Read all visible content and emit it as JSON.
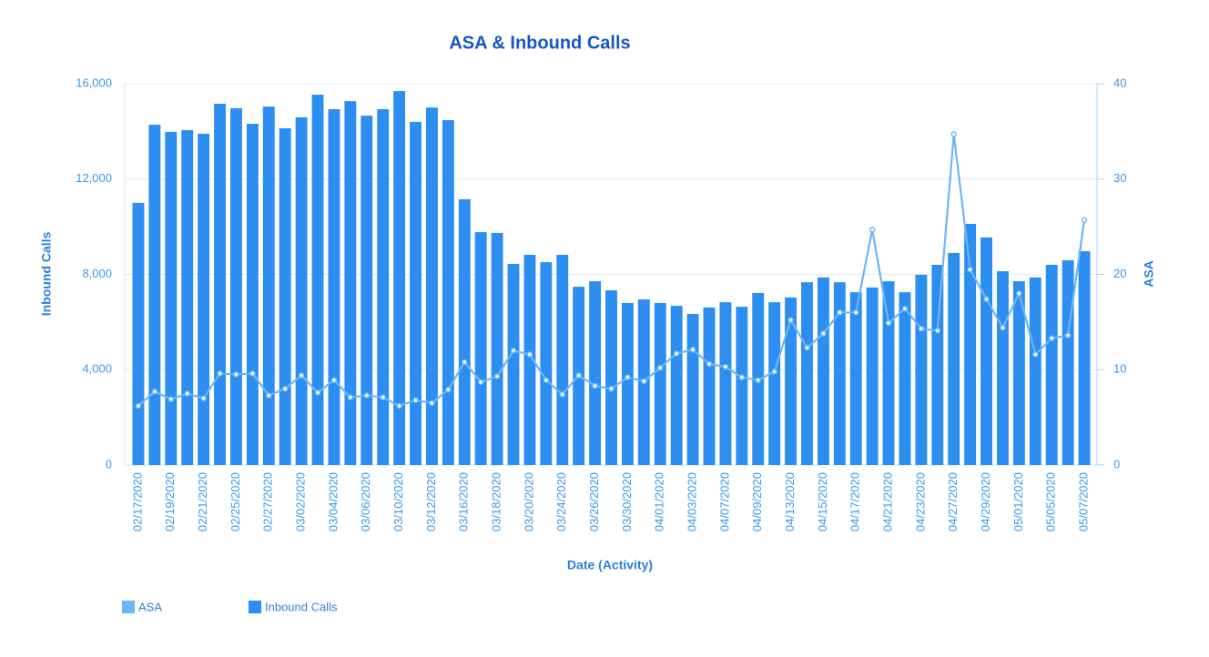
{
  "chart_data": {
    "type": "bar-line",
    "title": "ASA & Inbound Calls",
    "x_label": "Date (Activity)",
    "y_label": "Inbound Calls",
    "y2_label": "ASA",
    "categories": [
      "02/17/2020",
      null,
      "02/19/2020",
      null,
      "02/21/2020",
      null,
      "02/25/2020",
      null,
      "02/27/2020",
      null,
      "03/02/2020",
      null,
      "03/04/2020",
      null,
      "03/06/2020",
      null,
      "03/10/2020",
      null,
      "03/12/2020",
      null,
      "03/16/2020",
      null,
      "03/18/2020",
      null,
      "03/20/2020",
      null,
      "03/24/2020",
      null,
      "03/26/2020",
      null,
      "03/30/2020",
      null,
      "04/01/2020",
      null,
      "04/03/2020",
      null,
      "04/07/2020",
      null,
      "04/09/2020",
      null,
      "04/13/2020",
      null,
      "04/15/2020",
      null,
      "04/17/2020",
      null,
      "04/21/2020",
      null,
      "04/23/2020",
      null,
      "04/27/2020",
      null,
      "04/29/2020",
      null,
      "05/01/2020",
      null,
      "05/05/2020",
      null,
      "05/07/2020"
    ],
    "series": [
      {
        "name": "ASA",
        "color": "#6db5f6",
        "type": "line",
        "axis": "y2",
        "values": [
          6.2,
          7.7,
          6.9,
          7.5,
          7.0,
          9.6,
          9.5,
          9.6,
          7.3,
          8.0,
          9.4,
          7.6,
          8.9,
          7.1,
          7.3,
          7.1,
          6.2,
          6.8,
          6.5,
          7.9,
          10.8,
          8.7,
          9.3,
          12.0,
          11.6,
          8.9,
          7.4,
          9.4,
          8.3,
          8.0,
          9.2,
          8.8,
          10.2,
          11.7,
          12.1,
          10.6,
          10.3,
          9.2,
          8.9,
          9.8,
          15.2,
          12.3,
          13.8,
          16.0,
          16.0,
          24.7,
          14.9,
          16.4,
          14.3,
          14.1,
          34.7,
          20.5,
          17.4,
          14.4,
          18.0,
          11.6,
          13.3,
          13.6,
          25.7
        ]
      },
      {
        "name": "Inbound Calls",
        "color": "#2b8ef0",
        "type": "bar",
        "values": [
          11000,
          14280,
          13980,
          14050,
          13900,
          15160,
          14970,
          14320,
          15040,
          14130,
          14590,
          15540,
          14930,
          15270,
          14660,
          14930,
          15690,
          14400,
          15000,
          14470,
          11150,
          9770,
          9740,
          8440,
          8820,
          8510,
          8820,
          7480,
          7710,
          7330,
          6800,
          6950,
          6800,
          6680,
          6340,
          6610,
          6830,
          6640,
          7220,
          6830,
          7030,
          7670,
          7870,
          7670,
          7250,
          7450,
          7710,
          7250,
          7980,
          8400,
          8900,
          10120,
          9550,
          8130,
          7710,
          7870,
          8400,
          8590,
          8970
        ]
      }
    ],
    "ylim": [
      0,
      16000
    ],
    "yticks": [
      0,
      {
        "value": 4000,
        "label": "4,000"
      },
      {
        "value": 8000,
        "label": "8,000"
      },
      {
        "value": 12000,
        "label": "12,000"
      },
      {
        "value": 16000,
        "label": "16,000"
      }
    ],
    "y2lim": [
      0,
      40
    ],
    "y2ticks": [
      0,
      10,
      20,
      30,
      40
    ],
    "grid": true
  }
}
